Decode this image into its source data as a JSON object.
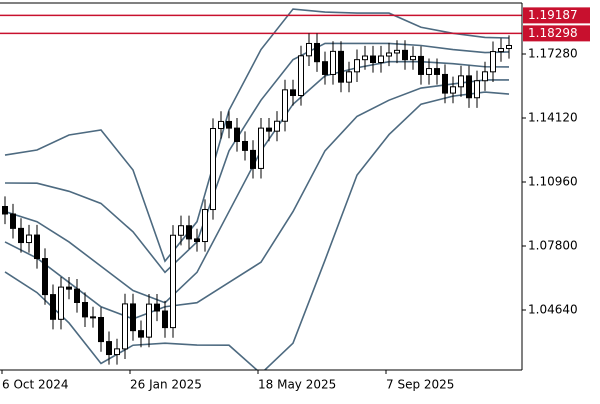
{
  "chart_data": {
    "type": "candlestick",
    "categories": [
      "6 Oct 2024",
      null,
      null,
      null,
      null,
      null,
      null,
      null,
      null,
      null,
      null,
      null,
      null,
      null,
      null,
      null,
      "26 Jan 2025",
      null,
      null,
      null,
      null,
      null,
      null,
      null,
      null,
      null,
      null,
      null,
      null,
      null,
      null,
      null,
      "18 May 2025",
      null,
      null,
      null,
      null,
      null,
      null,
      null,
      null,
      null,
      null,
      null,
      null,
      null,
      null,
      null,
      "7 Sep 2025",
      null,
      null,
      null,
      null,
      null,
      null,
      null,
      null,
      null,
      null,
      null,
      null,
      null,
      null,
      null
    ],
    "open": [
      1.0975,
      1.0938,
      1.0867,
      1.0797,
      1.0834,
      1.0718,
      1.054,
      1.0418,
      1.0577,
      1.0567,
      1.0501,
      1.043,
      1.0427,
      1.0308,
      1.0244,
      1.0272,
      1.0494,
      1.0362,
      1.033,
      1.0493,
      1.0459,
      1.0377,
      1.0833,
      1.088,
      1.0815,
      1.0802,
      1.096,
      1.136,
      1.1395,
      1.1362,
      1.1296,
      1.1252,
      1.1163,
      1.1362,
      1.1347,
      1.1396,
      1.1551,
      1.1523,
      1.1719,
      1.178,
      1.169,
      1.1627,
      1.1741,
      1.1589,
      1.164,
      1.17,
      1.1718,
      1.1686,
      1.1718,
      1.1733,
      1.1746,
      1.17,
      1.1716,
      1.1627,
      1.1656,
      1.1627,
      1.1535,
      1.1566,
      1.162,
      1.1512,
      1.1596,
      1.164,
      1.174,
      1.1755
    ],
    "high": [
      1.1025,
      1.0988,
      1.0917,
      1.0884,
      1.0884,
      1.0768,
      1.059,
      1.0627,
      1.0627,
      1.0617,
      1.0551,
      1.048,
      1.0477,
      1.0358,
      1.0322,
      1.0544,
      1.0544,
      1.0412,
      1.0543,
      1.0543,
      1.0509,
      1.0883,
      1.093,
      1.093,
      1.0865,
      1.101,
      1.141,
      1.1445,
      1.1445,
      1.1412,
      1.1346,
      1.1302,
      1.1412,
      1.1412,
      1.1446,
      1.1601,
      1.1601,
      1.1769,
      1.183,
      1.183,
      1.174,
      1.1791,
      1.1791,
      1.169,
      1.175,
      1.1768,
      1.1768,
      1.1768,
      1.1783,
      1.1796,
      1.1796,
      1.1766,
      1.1766,
      1.1706,
      1.1706,
      1.1677,
      1.1616,
      1.167,
      1.167,
      1.1646,
      1.169,
      1.179,
      1.1805,
      1.182
    ],
    "low": [
      1.0888,
      1.0817,
      1.0747,
      1.0747,
      1.0668,
      1.049,
      1.0368,
      1.0368,
      1.0517,
      1.0451,
      1.038,
      1.0377,
      1.0258,
      1.0194,
      1.0194,
      1.0222,
      1.0312,
      1.028,
      1.028,
      1.0409,
      1.0327,
      1.0327,
      1.0783,
      1.0765,
      1.0752,
      1.0752,
      1.091,
      1.131,
      1.1312,
      1.1246,
      1.1202,
      1.1113,
      1.1113,
      1.1297,
      1.1297,
      1.1346,
      1.1473,
      1.1473,
      1.1669,
      1.164,
      1.1577,
      1.1577,
      1.1539,
      1.1539,
      1.159,
      1.165,
      1.1636,
      1.1636,
      1.1668,
      1.1683,
      1.165,
      1.165,
      1.1577,
      1.1577,
      1.1577,
      1.1485,
      1.1485,
      1.1516,
      1.1462,
      1.1462,
      1.1546,
      1.159,
      1.169,
      1.1705
    ],
    "close": [
      1.0938,
      1.0867,
      1.0797,
      1.0834,
      1.0718,
      1.054,
      1.0418,
      1.0577,
      1.0567,
      1.0501,
      1.043,
      1.0427,
      1.0308,
      1.0244,
      1.0272,
      1.0494,
      1.0362,
      1.033,
      1.0493,
      1.0459,
      1.0377,
      1.0833,
      1.088,
      1.0815,
      1.0802,
      1.096,
      1.136,
      1.1395,
      1.1362,
      1.1296,
      1.1252,
      1.1163,
      1.1362,
      1.1347,
      1.1396,
      1.1551,
      1.1523,
      1.1719,
      1.178,
      1.169,
      1.1627,
      1.1741,
      1.1589,
      1.164,
      1.17,
      1.1718,
      1.1686,
      1.1718,
      1.1733,
      1.1746,
      1.17,
      1.1716,
      1.1627,
      1.1656,
      1.1627,
      1.1535,
      1.1566,
      1.162,
      1.1512,
      1.1596,
      1.164,
      1.174,
      1.1755,
      1.177
    ],
    "up_color": "#ffffff",
    "down_color": "#000000",
    "wick_color": "#000000",
    "bands": {
      "x": [
        0,
        4,
        8,
        12,
        16,
        20,
        24,
        28,
        32,
        36,
        40,
        44,
        48,
        52,
        56,
        60,
        63
      ],
      "color": "#4d6a80",
      "series": [
        {
          "values": [
            1.1229,
            1.1254,
            1.1328,
            1.1353,
            1.1155,
            1.0705,
            1.09,
            1.145,
            1.175,
            1.195,
            1.1935,
            1.193,
            1.193,
            1.186,
            1.183,
            1.181,
            1.1807
          ]
        },
        {
          "values": [
            1.1091,
            1.109,
            1.105,
            1.099,
            1.085,
            1.065,
            1.08,
            1.125,
            1.15,
            1.17,
            1.178,
            1.178,
            1.178,
            1.177,
            1.175,
            1.1735,
            1.1738
          ]
        },
        {
          "values": [
            1.095,
            1.09,
            1.08,
            1.068,
            1.056,
            1.05,
            1.065,
            1.095,
            1.125,
            1.148,
            1.162,
            1.166,
            1.169,
            1.169,
            1.168,
            1.1665,
            1.1664
          ]
        },
        {
          "values": [
            1.08,
            1.072,
            1.06,
            1.048,
            1.042,
            1.048,
            1.05,
            1.06,
            1.07,
            1.095,
            1.125,
            1.142,
            1.15,
            1.156,
            1.158,
            1.16,
            1.16
          ]
        },
        {
          "values": [
            1.0652,
            1.055,
            1.04,
            1.02,
            1.029,
            1.03,
            1.0291,
            1.029,
            1.015,
            1.03,
            1.071,
            1.113,
            1.133,
            1.148,
            1.152,
            1.154,
            1.153
          ]
        }
      ]
    },
    "hlines": [
      1.19187,
      1.18298
    ],
    "hline_color": "#c8102e",
    "ylim": [
      1.01677,
      1.19798
    ],
    "yticks": [
      {
        "value": 1.0464,
        "label": "1.04640"
      },
      {
        "value": 1.078,
        "label": "1.07800"
      },
      {
        "value": 1.1096,
        "label": "1.10960"
      },
      {
        "value": 1.1412,
        "label": "1.14120"
      },
      {
        "value": 1.1728,
        "label": "1.17280"
      }
    ]
  }
}
